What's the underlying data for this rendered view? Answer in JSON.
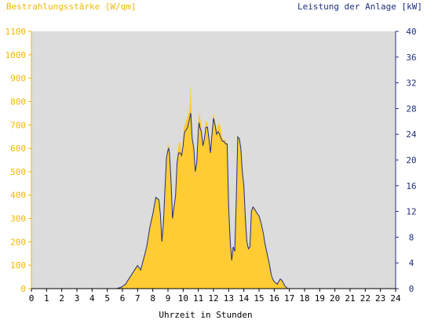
{
  "chart_data": {
    "type": "area",
    "left_axis_title": "Bestrahlungsstärke [W/qm]",
    "right_axis_title": "Leistung der Anlage [kW]",
    "xlabel": "Uhrzeit in Stunden",
    "x_ticks": [
      "0",
      "1",
      "2",
      "3",
      "4",
      "5",
      "6",
      "7",
      "8",
      "9",
      "10",
      "11",
      "12",
      "13",
      "14",
      "15",
      "16",
      "17",
      "18",
      "19",
      "20",
      "21",
      "22",
      "23",
      "24"
    ],
    "y_left_ticks": [
      "0",
      "100",
      "200",
      "300",
      "400",
      "500",
      "600",
      "700",
      "800",
      "900",
      "1000",
      "1100"
    ],
    "y_right_ticks": [
      "0",
      "4",
      "8",
      "12",
      "16",
      "20",
      "24",
      "28",
      "32",
      "36",
      "40"
    ],
    "xlim": [
      0,
      24
    ],
    "ylim_left": [
      0,
      1100
    ],
    "ylim_right": [
      0,
      40
    ],
    "grid": false,
    "colors": {
      "plot_background": "#dcdcdc",
      "irradiance_fill": "#ffcc33",
      "power_line": "#1f2f7a",
      "left_axis_color": "#f0b800",
      "right_axis_color": "#1f2f7a"
    },
    "series": [
      {
        "axis": "left",
        "style": "area",
        "x": [
          0,
          5.6,
          5.9,
          6.2,
          6.5,
          6.8,
          7.0,
          7.2,
          7.4,
          7.6,
          7.8,
          8.0,
          8.2,
          8.4,
          8.5,
          8.6,
          8.7,
          8.8,
          8.9,
          9.0,
          9.05,
          9.1,
          9.2,
          9.3,
          9.4,
          9.5,
          9.6,
          9.7,
          9.8,
          9.9,
          10.0,
          10.05,
          10.1,
          10.2,
          10.3,
          10.4,
          10.5,
          10.6,
          10.7,
          10.8,
          10.9,
          11.0,
          11.05,
          11.1,
          11.2,
          11.3,
          11.4,
          11.5,
          11.6,
          11.7,
          11.8,
          11.9,
          12.0,
          12.1,
          12.2,
          12.3,
          12.4,
          12.5,
          12.6,
          12.7,
          12.8,
          12.9,
          13.0,
          13.1,
          13.2,
          13.3,
          13.4,
          13.5,
          13.6,
          13.7,
          13.8,
          13.9,
          14.0,
          14.1,
          14.2,
          14.3,
          14.4,
          14.5,
          14.6,
          14.7,
          14.8,
          14.9,
          15.0,
          15.1,
          15.2,
          15.3,
          15.4,
          15.5,
          15.6,
          15.7,
          15.8,
          15.9,
          16.0,
          16.1,
          16.2,
          16.3,
          16.4,
          16.5,
          16.6,
          16.7,
          16.8,
          16.9,
          17.0,
          17.2,
          17.4,
          17.6,
          17.8,
          18.0,
          18.2,
          18.4,
          18.6,
          18.8,
          19.0,
          19.2,
          19.5,
          24
        ],
        "values": [
          0,
          0,
          5,
          20,
          50,
          80,
          100,
          80,
          130,
          180,
          260,
          320,
          390,
          380,
          320,
          200,
          280,
          420,
          560,
          630,
          600,
          580,
          460,
          300,
          350,
          400,
          560,
          620,
          630,
          580,
          640,
          690,
          700,
          720,
          740,
          760,
          880,
          640,
          600,
          500,
          540,
          720,
          760,
          740,
          700,
          620,
          650,
          720,
          710,
          650,
          580,
          680,
          750,
          720,
          680,
          700,
          710,
          680,
          640,
          640,
          630,
          620,
          350,
          200,
          120,
          180,
          160,
          380,
          650,
          640,
          600,
          500,
          440,
          300,
          200,
          170,
          180,
          330,
          350,
          340,
          330,
          320,
          310,
          290,
          260,
          230,
          190,
          160,
          130,
          100,
          60,
          40,
          30,
          25,
          20,
          30,
          40,
          35,
          25,
          10,
          5,
          0,
          0,
          0,
          0,
          0,
          0,
          0,
          0,
          0,
          0,
          0,
          0,
          0,
          0,
          0
        ]
      },
      {
        "axis": "right",
        "style": "line",
        "x": [
          0,
          5.6,
          5.9,
          6.2,
          6.5,
          6.8,
          7.0,
          7.2,
          7.4,
          7.6,
          7.8,
          8.0,
          8.2,
          8.4,
          8.5,
          8.6,
          8.7,
          8.8,
          8.9,
          9.0,
          9.05,
          9.1,
          9.2,
          9.3,
          9.4,
          9.5,
          9.6,
          9.7,
          9.8,
          9.9,
          10.0,
          10.05,
          10.1,
          10.2,
          10.3,
          10.4,
          10.5,
          10.6,
          10.7,
          10.8,
          10.9,
          11.0,
          11.05,
          11.1,
          11.2,
          11.3,
          11.4,
          11.5,
          11.6,
          11.7,
          11.8,
          11.9,
          12.0,
          12.1,
          12.2,
          12.3,
          12.4,
          12.5,
          12.6,
          12.7,
          12.8,
          12.9,
          13.0,
          13.1,
          13.2,
          13.3,
          13.4,
          13.5,
          13.6,
          13.7,
          13.8,
          13.9,
          14.0,
          14.1,
          14.2,
          14.3,
          14.4,
          14.5,
          14.6,
          14.7,
          14.8,
          14.9,
          15.0,
          15.1,
          15.2,
          15.3,
          15.4,
          15.5,
          15.6,
          15.7,
          15.8,
          15.9,
          16.0,
          16.1,
          16.2,
          16.3,
          16.4,
          16.5,
          16.6,
          16.7,
          16.8,
          16.9,
          17.0,
          17.2,
          17.4,
          17.6,
          17.8,
          18.0,
          18.2,
          18.4,
          18.6,
          18.8,
          19.0,
          19.2,
          19.5,
          24
        ],
        "values": [
          0,
          0,
          0.2,
          0.7,
          1.8,
          2.9,
          3.6,
          2.9,
          4.7,
          6.5,
          9.5,
          11.6,
          14.2,
          13.8,
          11.6,
          7.3,
          10.2,
          15.3,
          20.4,
          21.5,
          21.8,
          21.1,
          16.7,
          10.9,
          12.7,
          14.5,
          19.6,
          21.1,
          21.1,
          20.7,
          22.2,
          23.6,
          24.4,
          24.7,
          25.1,
          26.2,
          27.3,
          23.3,
          21.8,
          18.2,
          19.6,
          24.7,
          25.8,
          25.1,
          24.4,
          22.2,
          23.3,
          25.1,
          25.1,
          23.3,
          21.1,
          24.0,
          26.5,
          25.5,
          24.0,
          24.4,
          24.0,
          23.3,
          22.9,
          22.9,
          22.5,
          22.5,
          12.7,
          7.3,
          4.4,
          6.5,
          5.8,
          13.8,
          23.6,
          23.3,
          21.8,
          18.2,
          16.0,
          10.9,
          7.3,
          6.2,
          6.5,
          12.0,
          12.7,
          12.4,
          12.0,
          11.6,
          11.3,
          10.5,
          9.5,
          8.4,
          6.9,
          5.8,
          4.7,
          3.6,
          2.2,
          1.5,
          1.1,
          0.9,
          0.7,
          1.1,
          1.5,
          1.3,
          0.9,
          0.4,
          0.2,
          0,
          0,
          0,
          0,
          0,
          0,
          0,
          0,
          0,
          0,
          0,
          0,
          0,
          0,
          0
        ]
      }
    ]
  }
}
